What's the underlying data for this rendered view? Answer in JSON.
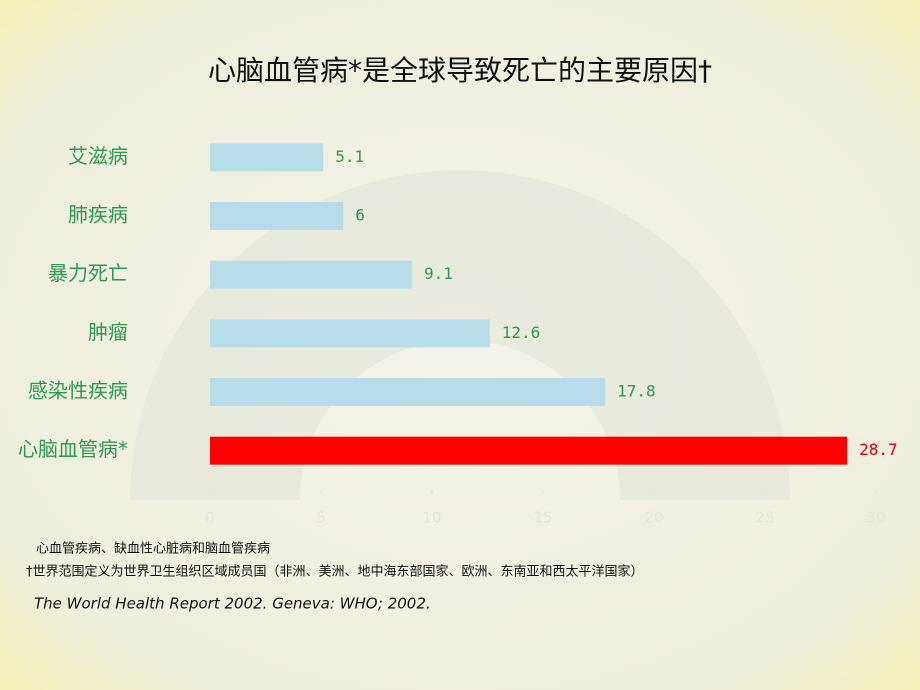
{
  "chart_data": {
    "type": "hbar",
    "title": "心脑血管病*是全球导致死亡的主要原因†",
    "categories": [
      "艾滋病",
      "肺疾病",
      "暴力死亡",
      "肿瘤",
      "感染性疾病",
      "心脑血管病*"
    ],
    "values": [
      5.1,
      6,
      9.1,
      12.6,
      17.8,
      28.7
    ],
    "colors": [
      "#b7dde8",
      "#b7dde8",
      "#b7dde8",
      "#b7dde8",
      "#b7dde8",
      "#ff0000"
    ],
    "label_colors": [
      "#2e9a4e",
      "#2e9a4e",
      "#2e9a4e",
      "#2e9a4e",
      "#2e9a4e",
      "#e00000"
    ],
    "xlim": [
      0,
      30
    ],
    "xticks": [
      0,
      5,
      10,
      15,
      20,
      25,
      30
    ],
    "footnotes": [
      "心血管疾病、缺血性心脏病和脑血管疾病",
      "†世界范围定义为世界卫生组织区域成员国（非洲、美洲、地中海东部国家、欧洲、东南亚和西太平洋国家）"
    ],
    "source": "The World Health Report 2002. Geneva: WHO; 2002."
  }
}
